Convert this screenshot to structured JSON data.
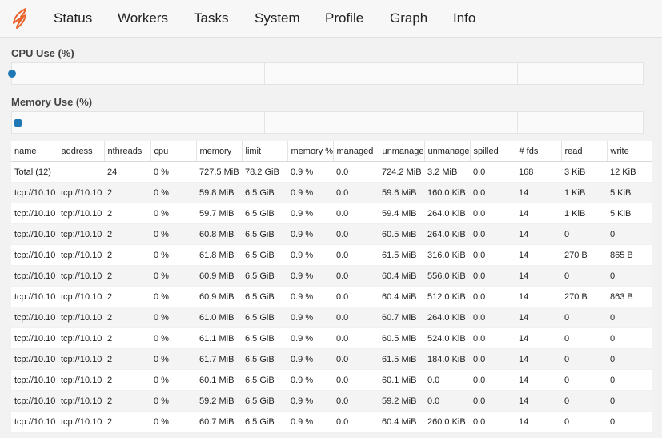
{
  "nav": {
    "items": [
      "Status",
      "Workers",
      "Tasks",
      "System",
      "Profile",
      "Graph",
      "Info"
    ]
  },
  "cpu": {
    "label": "CPU Use (%)",
    "value_pct": 0
  },
  "memory": {
    "label": "Memory Use (%)",
    "value_pct": 0.9
  },
  "colors": {
    "accent": "#1f77b4",
    "logo": "#e8622a"
  },
  "table": {
    "columns": [
      "name",
      "address",
      "nthreads",
      "cpu",
      "memory",
      "limit",
      "memory %",
      "managed",
      "unmanage",
      "unmanage",
      "spilled",
      "# fds",
      "read",
      "write"
    ],
    "rows": [
      [
        "Total (12)",
        "",
        "24",
        "0 %",
        "727.5 MiB",
        "78.2 GiB",
        "0.9 %",
        "0.0",
        "724.2 MiB",
        "3.2 MiB",
        "0.0",
        "168",
        "3 KiB",
        "12 KiB"
      ],
      [
        "tcp://10.10",
        "tcp://10.10",
        "2",
        "0 %",
        "59.8 MiB",
        "6.5 GiB",
        "0.9 %",
        "0.0",
        "59.6 MiB",
        "160.0 KiB",
        "0.0",
        "14",
        "1 KiB",
        "5 KiB"
      ],
      [
        "tcp://10.10",
        "tcp://10.10",
        "2",
        "0 %",
        "59.7 MiB",
        "6.5 GiB",
        "0.9 %",
        "0.0",
        "59.4 MiB",
        "264.0 KiB",
        "0.0",
        "14",
        "1 KiB",
        "5 KiB"
      ],
      [
        "tcp://10.10",
        "tcp://10.10",
        "2",
        "0 %",
        "60.8 MiB",
        "6.5 GiB",
        "0.9 %",
        "0.0",
        "60.5 MiB",
        "264.0 KiB",
        "0.0",
        "14",
        "0",
        "0"
      ],
      [
        "tcp://10.10",
        "tcp://10.10",
        "2",
        "0 %",
        "61.8 MiB",
        "6.5 GiB",
        "0.9 %",
        "0.0",
        "61.5 MiB",
        "316.0 KiB",
        "0.0",
        "14",
        "270 B",
        "865 B"
      ],
      [
        "tcp://10.10",
        "tcp://10.10",
        "2",
        "0 %",
        "60.9 MiB",
        "6.5 GiB",
        "0.9 %",
        "0.0",
        "60.4 MiB",
        "556.0 KiB",
        "0.0",
        "14",
        "0",
        "0"
      ],
      [
        "tcp://10.10",
        "tcp://10.10",
        "2",
        "0 %",
        "60.9 MiB",
        "6.5 GiB",
        "0.9 %",
        "0.0",
        "60.4 MiB",
        "512.0 KiB",
        "0.0",
        "14",
        "270 B",
        "863 B"
      ],
      [
        "tcp://10.10",
        "tcp://10.10",
        "2",
        "0 %",
        "61.0 MiB",
        "6.5 GiB",
        "0.9 %",
        "0.0",
        "60.7 MiB",
        "264.0 KiB",
        "0.0",
        "14",
        "0",
        "0"
      ],
      [
        "tcp://10.10",
        "tcp://10.10",
        "2",
        "0 %",
        "61.1 MiB",
        "6.5 GiB",
        "0.9 %",
        "0.0",
        "60.5 MiB",
        "524.0 KiB",
        "0.0",
        "14",
        "0",
        "0"
      ],
      [
        "tcp://10.10",
        "tcp://10.10",
        "2",
        "0 %",
        "61.7 MiB",
        "6.5 GiB",
        "0.9 %",
        "0.0",
        "61.5 MiB",
        "184.0 KiB",
        "0.0",
        "14",
        "0",
        "0"
      ],
      [
        "tcp://10.10",
        "tcp://10.10",
        "2",
        "0 %",
        "60.1 MiB",
        "6.5 GiB",
        "0.9 %",
        "0.0",
        "60.1 MiB",
        "0.0",
        "0.0",
        "14",
        "0",
        "0"
      ],
      [
        "tcp://10.10",
        "tcp://10.10",
        "2",
        "0 %",
        "59.2 MiB",
        "6.5 GiB",
        "0.9 %",
        "0.0",
        "59.2 MiB",
        "0.0",
        "0.0",
        "14",
        "0",
        "0"
      ],
      [
        "tcp://10.10",
        "tcp://10.10",
        "2",
        "0 %",
        "60.7 MiB",
        "6.5 GiB",
        "0.9 %",
        "0.0",
        "60.4 MiB",
        "260.0 KiB",
        "0.0",
        "14",
        "0",
        "0"
      ]
    ]
  }
}
